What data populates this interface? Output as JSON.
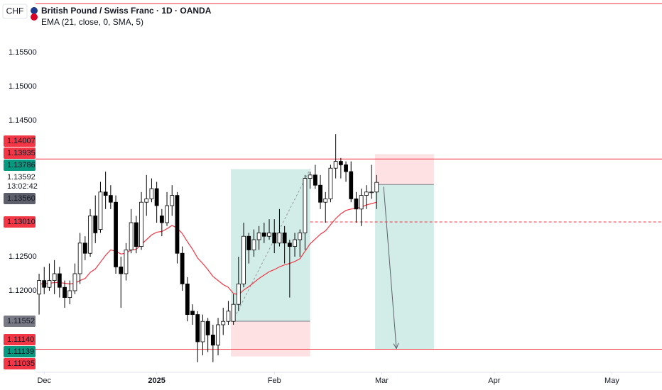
{
  "chart_data": {
    "type": "candlestick",
    "currency": "CHF",
    "title": "British Pound / Swiss Franc · 1D · OANDA",
    "indicator": {
      "label": "EMA (21, close, 0, SMA, 5)",
      "color": "#f23645",
      "values": [
        1.121,
        1.121,
        1.1211,
        1.1212,
        1.1212,
        1.1211,
        1.121,
        1.1211,
        1.1215,
        1.1218,
        1.1227,
        1.1232,
        1.1242,
        1.1252,
        1.126,
        1.1258,
        1.1254,
        1.1255,
        1.126,
        1.1261,
        1.1268,
        1.1275,
        1.1282,
        1.1286,
        1.1287,
        1.1291,
        1.1296,
        1.1292,
        1.1284,
        1.1272,
        1.1261,
        1.1248,
        1.124,
        1.1231,
        1.1221,
        1.1215,
        1.1209,
        1.1205,
        1.1196,
        1.1194,
        1.1201,
        1.1206,
        1.1212,
        1.1218,
        1.1223,
        1.1228,
        1.1231,
        1.1235,
        1.1238,
        1.124,
        1.1243,
        1.1247,
        1.1258,
        1.1269,
        1.1276,
        1.1283,
        1.1288,
        1.1297,
        1.1306,
        1.1313,
        1.1318,
        1.132,
        1.1321,
        1.1323,
        1.1326,
        1.1328,
        1.133
      ]
    },
    "x": [
      0,
      1,
      2,
      3,
      4,
      5,
      6,
      7,
      8,
      9,
      10,
      11,
      12,
      13,
      14,
      15,
      16,
      17,
      18,
      19,
      20,
      21,
      22,
      23,
      24,
      25,
      26,
      27,
      28,
      29,
      30,
      31,
      32,
      33,
      34,
      35,
      36,
      37,
      38,
      39,
      40,
      41,
      42,
      43,
      44,
      45,
      46,
      47,
      48,
      49,
      50,
      51,
      52,
      53,
      54,
      55,
      56,
      57,
      58,
      59,
      60,
      61,
      62,
      63,
      64,
      65,
      66
    ],
    "open": [
      1.1195,
      1.1215,
      1.1205,
      1.1215,
      1.1225,
      1.1205,
      1.119,
      1.12,
      1.1225,
      1.127,
      1.1255,
      1.131,
      1.129,
      1.1345,
      1.134,
      1.133,
      1.1235,
      1.1225,
      1.126,
      1.13,
      1.1265,
      1.133,
      1.1335,
      1.135,
      1.131,
      1.13,
      1.1325,
      1.134,
      1.1255,
      1.121,
      1.117,
      1.1165,
      1.1125,
      1.1155,
      1.1135,
      1.112,
      1.115,
      1.1155,
      1.1155,
      1.118,
      1.121,
      1.128,
      1.126,
      1.1275,
      1.1285,
      1.128,
      1.1285,
      1.127,
      1.1285,
      1.127,
      1.1265,
      1.1275,
      1.1285,
      1.1365,
      1.137,
      1.1355,
      1.133,
      1.1335,
      1.138,
      1.139,
      1.1385,
      1.1375,
      1.1335,
      1.132,
      1.134,
      1.1345,
      1.1345
    ],
    "high": [
      1.1225,
      1.1235,
      1.124,
      1.1245,
      1.1235,
      1.1215,
      1.1215,
      1.124,
      1.1285,
      1.128,
      1.132,
      1.134,
      1.136,
      1.1375,
      1.1355,
      1.134,
      1.125,
      1.127,
      1.132,
      1.131,
      1.1345,
      1.137,
      1.1365,
      1.136,
      1.132,
      1.1345,
      1.1355,
      1.1345,
      1.1265,
      1.122,
      1.118,
      1.117,
      1.1165,
      1.116,
      1.115,
      1.116,
      1.1175,
      1.1185,
      1.1195,
      1.125,
      1.13,
      1.1285,
      1.129,
      1.1295,
      1.13,
      1.1305,
      1.1305,
      1.132,
      1.1295,
      1.1275,
      1.1285,
      1.129,
      1.137,
      1.1375,
      1.1385,
      1.137,
      1.1345,
      1.1385,
      1.143,
      1.1395,
      1.139,
      1.139,
      1.1345,
      1.135,
      1.1355,
      1.1385,
      1.137
    ],
    "low": [
      1.1165,
      1.1195,
      1.12,
      1.1195,
      1.119,
      1.1175,
      1.118,
      1.1195,
      1.121,
      1.1245,
      1.125,
      1.127,
      1.1285,
      1.132,
      1.132,
      1.1225,
      1.1175,
      1.1215,
      1.1255,
      1.1255,
      1.126,
      1.131,
      1.133,
      1.13,
      1.128,
      1.1295,
      1.131,
      1.124,
      1.12,
      1.1155,
      1.115,
      1.1095,
      1.1105,
      1.111,
      1.1095,
      1.1105,
      1.1135,
      1.115,
      1.115,
      1.117,
      1.1205,
      1.124,
      1.125,
      1.126,
      1.127,
      1.1275,
      1.1255,
      1.1265,
      1.124,
      1.119,
      1.125,
      1.125,
      1.126,
      1.135,
      1.135,
      1.132,
      1.13,
      1.133,
      1.1365,
      1.1365,
      1.136,
      1.133,
      1.13,
      1.1295,
      1.132,
      1.1335,
      1.132
    ],
    "close": [
      1.1215,
      1.1205,
      1.1215,
      1.1225,
      1.1205,
      1.119,
      1.12,
      1.1225,
      1.127,
      1.1255,
      1.131,
      1.1285,
      1.1345,
      1.134,
      1.133,
      1.1235,
      1.1225,
      1.126,
      1.13,
      1.1265,
      1.133,
      1.1335,
      1.135,
      1.1325,
      1.13,
      1.1325,
      1.134,
      1.1255,
      1.121,
      1.1165,
      1.1165,
      1.1125,
      1.1155,
      1.1135,
      1.112,
      1.115,
      1.1155,
      1.117,
      1.118,
      1.121,
      1.128,
      1.126,
      1.1275,
      1.1285,
      1.128,
      1.1285,
      1.127,
      1.1285,
      1.127,
      1.1265,
      1.1275,
      1.1285,
      1.1365,
      1.137,
      1.1355,
      1.133,
      1.1335,
      1.138,
      1.139,
      1.1385,
      1.1375,
      1.1335,
      1.132,
      1.134,
      1.1345,
      1.1345,
      1.13592
    ],
    "up_color": "#ffffff",
    "down_color": "#000000",
    "wick_color": "#000000",
    "xlim": [
      -0.7,
      121.8
    ],
    "ylim": [
      1.10802,
      1.16271
    ],
    "xticks": [
      {
        "value": 1,
        "label": "Dec"
      },
      {
        "value": 23,
        "label": "2025"
      },
      {
        "value": 46,
        "label": "Feb"
      },
      {
        "value": 67,
        "label": "Mar"
      },
      {
        "value": 89,
        "label": "Apr"
      },
      {
        "value": 112,
        "label": "May"
      }
    ],
    "yticks": [
      {
        "value": 1.155,
        "label": "1.15500"
      },
      {
        "value": 1.15,
        "label": "1.15000"
      },
      {
        "value": 1.145,
        "label": "1.14500"
      },
      {
        "value": 1.125,
        "label": "1.12500"
      },
      {
        "value": 1.12,
        "label": "1.12000"
      }
    ],
    "positions": [
      {
        "side": "long",
        "entry": 1.11552,
        "target": 1.13786,
        "stop": 1.11035,
        "x_range": [
          37.5,
          53
        ]
      },
      {
        "side": "short",
        "entry": 1.1356,
        "target": 1.11139,
        "stop": 1.14007,
        "x_range": [
          65.7,
          77.2
        ]
      }
    ],
    "hlines": [
      {
        "value": 1.1622,
        "color": "#f23645",
        "style": "solid"
      },
      {
        "value": 1.13935,
        "color": "#f23645",
        "style": "solid"
      },
      {
        "value": 1.1301,
        "color": "#f23645",
        "style": "dashed",
        "x_from": 53
      },
      {
        "value": 1.1114,
        "color": "#f23645",
        "style": "solid"
      }
    ],
    "countdown": "13:02:42",
    "price_markers": [
      1.14007,
      1.13935,
      1.13786,
      1.13592,
      {
        "value": 1.1356,
        "label": "1.13560"
      },
      {
        "value": 1.1301,
        "label": "1.13010"
      },
      1.11552,
      {
        "value": 1.1114,
        "label": "1.11140"
      },
      1.11139,
      1.11035
    ],
    "price_marker_colors": [
      "#f23645",
      "#f23645",
      "#089981",
      "#ffffff",
      "#5d606b",
      "#f23645",
      "#787b86",
      "#f23645",
      "#089981",
      "#f23645"
    ]
  }
}
